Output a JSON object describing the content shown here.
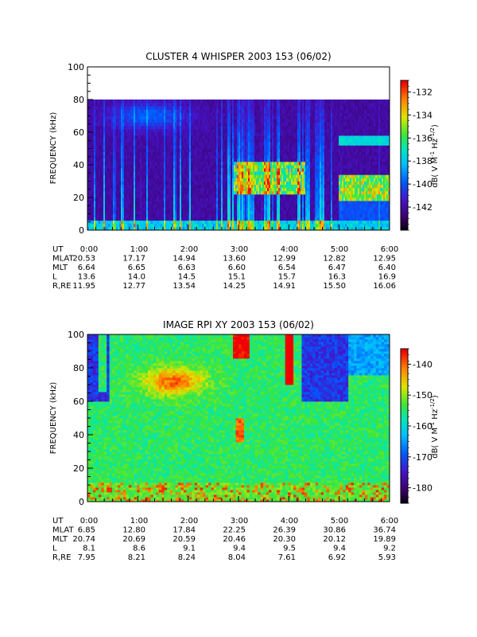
{
  "chart_data": [
    {
      "type": "heatmap",
      "title": "CLUSTER 4 WHISPER 2003 153 (06/02)",
      "ylabel": "FREQUENCY (kHz)",
      "ylim": [
        0,
        100
      ],
      "yticks": [
        "0",
        "20",
        "40",
        "60",
        "80",
        "100"
      ],
      "data_max_khz": 80,
      "colorbar": {
        "label": "dB( V M⁻¹ Hz⁻¹ᐟ²)",
        "label_base": "dB( V M",
        "label_exp1": "-1",
        "label_mid": " Hz",
        "label_exp2": "-1/2",
        "label_end": ")",
        "range": [
          -144,
          -131
        ],
        "ticks": [
          "-132",
          "-134",
          "-136",
          "-138",
          "-140",
          "-142"
        ]
      },
      "ephemeris": {
        "rows": [
          "UT",
          "MLAT",
          "MLT",
          "L",
          "R,RE"
        ],
        "times": [
          "0:00",
          "1:00",
          "2:00",
          "3:00",
          "4:00",
          "5:00",
          "6:00"
        ],
        "values": [
          [
            "20.53",
            "17.17",
            "14.94",
            "13.60",
            "12.99",
            "12.82",
            "12.95"
          ],
          [
            "6.64",
            "6.65",
            "6.63",
            "6.60",
            "6.54",
            "6.47",
            "6.40"
          ],
          [
            "13.6",
            "14.0",
            "14.5",
            "15.1",
            "15.7",
            "16.3",
            "16.9"
          ],
          [
            "11.95",
            "12.77",
            "13.54",
            "14.25",
            "14.91",
            "15.50",
            "16.06"
          ]
        ]
      }
    },
    {
      "type": "heatmap",
      "title": "IMAGE RPI XY 2003 153 (06/02)",
      "ylabel": "FREQUENCY (kHz)",
      "ylim": [
        0,
        100
      ],
      "yticks": [
        "0",
        "20",
        "40",
        "60",
        "80",
        "100"
      ],
      "colorbar": {
        "label_base": "dB( V M",
        "label_exp1": "-1",
        "label_mid": " Hz",
        "label_exp2": "-1/2",
        "label_end": ")",
        "range": [
          -185,
          -135
        ],
        "ticks": [
          "-140",
          "-150",
          "-160",
          "-170",
          "-180"
        ]
      },
      "ephemeris": {
        "rows": [
          "UT",
          "MLAT",
          "MLT",
          "L",
          "R,RE"
        ],
        "times": [
          "0:00",
          "1:00",
          "2:00",
          "3:00",
          "4:00",
          "5:00",
          "6:00"
        ],
        "values": [
          [
            "6.85",
            "12.80",
            "17.84",
            "22.25",
            "26.39",
            "30.86",
            "36.74"
          ],
          [
            "20.74",
            "20.69",
            "20.59",
            "20.46",
            "20.30",
            "20.12",
            "19.89"
          ],
          [
            "8.1",
            "8.6",
            "9.1",
            "9.4",
            "9.5",
            "9.4",
            "9.2"
          ],
          [
            "7.95",
            "8.21",
            "8.24",
            "8.04",
            "7.61",
            "6.92",
            "5.93"
          ]
        ]
      }
    }
  ]
}
